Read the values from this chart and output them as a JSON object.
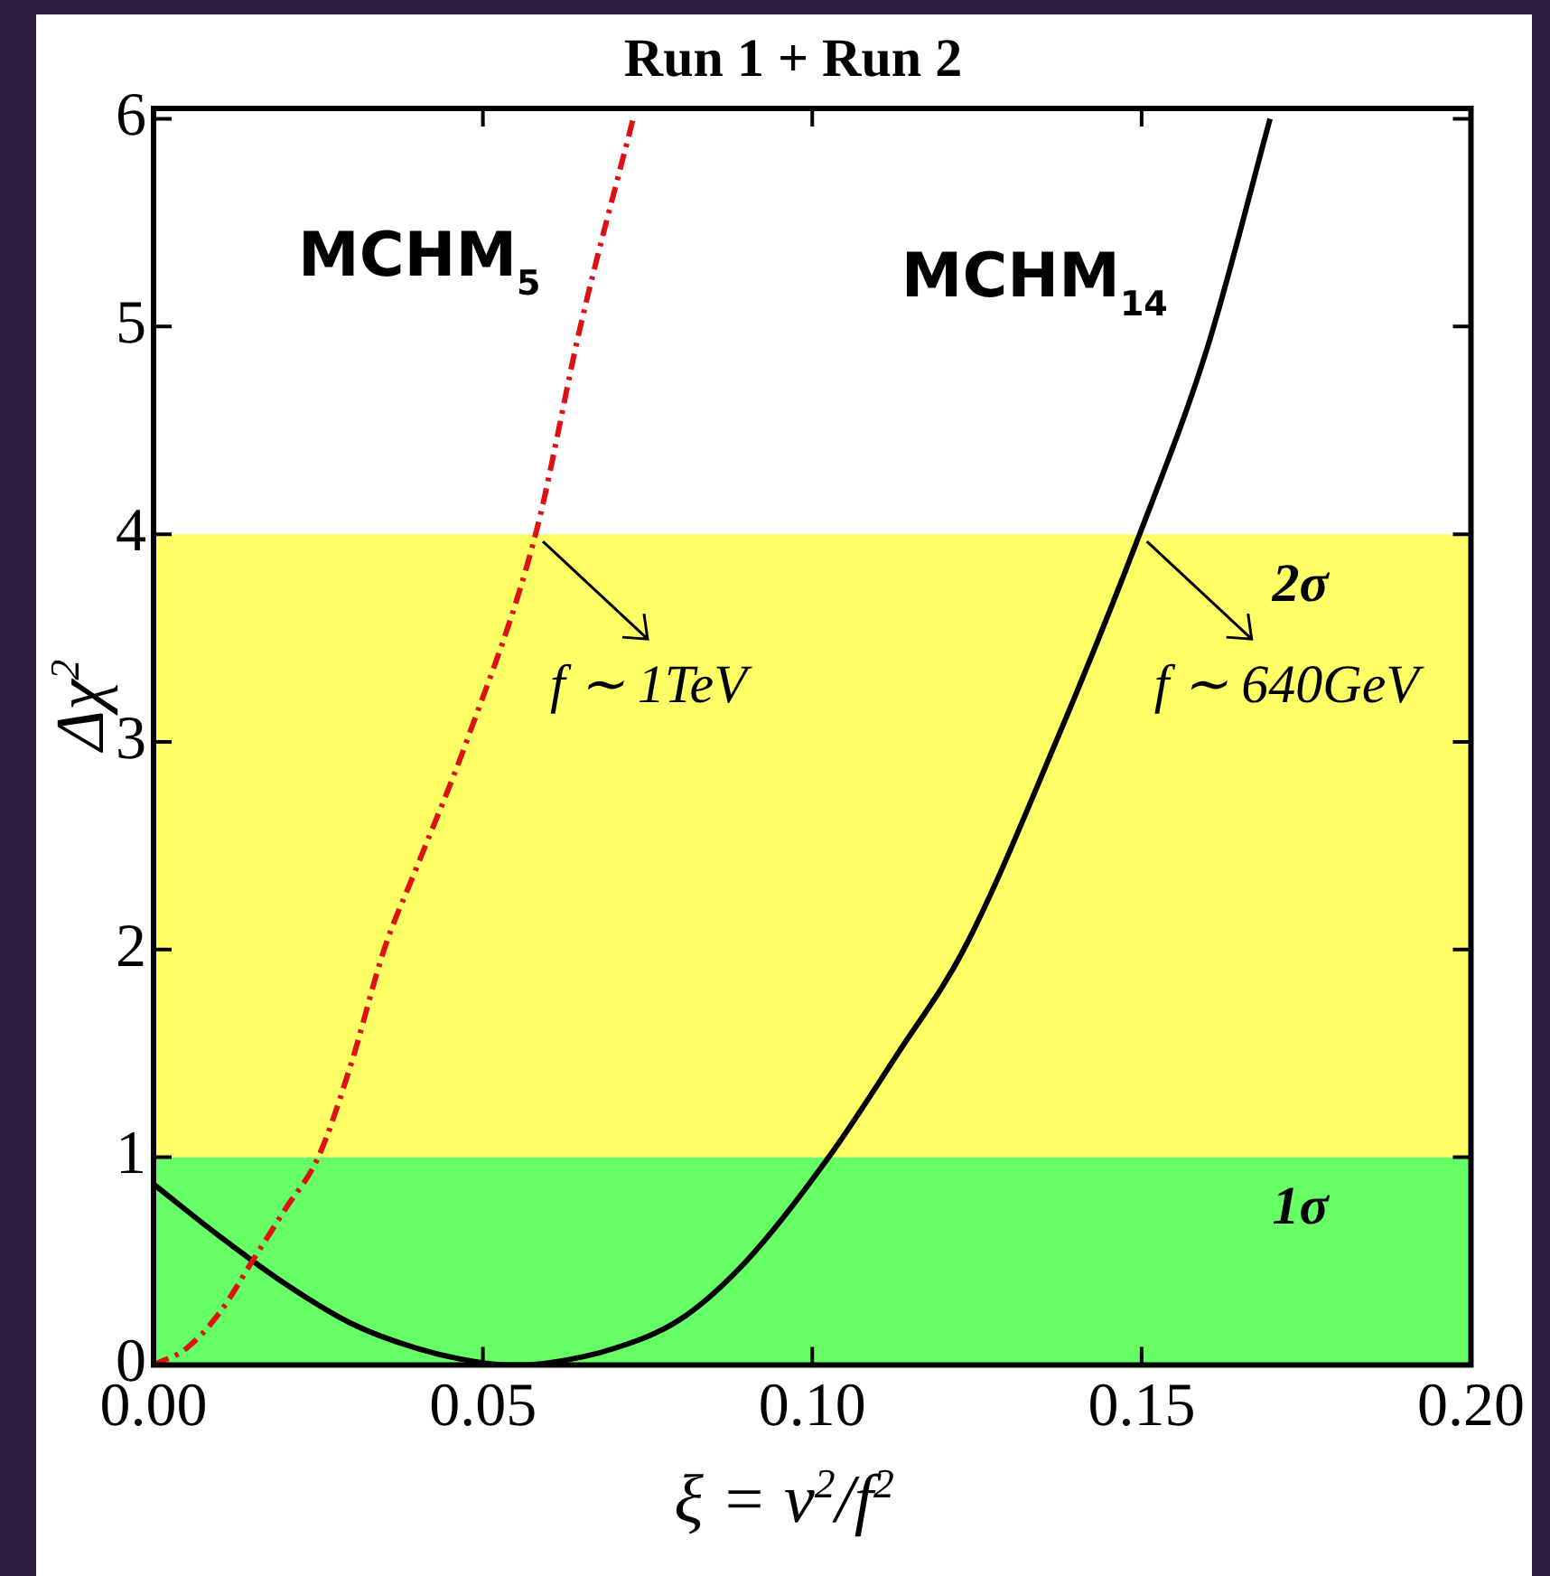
{
  "chart_data": {
    "type": "line",
    "title": "Run 1 + Run 2",
    "xlabel": "ξ = v$^{2}$/f$^{2}$",
    "ylabel": "Δχ$^{2}$",
    "xlim": [
      0,
      0.2
    ],
    "ylim": [
      0,
      6.05
    ],
    "xticks": [
      {
        "value": 0,
        "label": "0.00"
      },
      0.05,
      {
        "value": 0.1,
        "label": "0.10"
      },
      0.15,
      {
        "value": 0.2,
        "label": "0.20"
      }
    ],
    "yticks": [
      0,
      1,
      2,
      3,
      4,
      5,
      6
    ],
    "grid": false,
    "legend": false,
    "marker": "none",
    "series": [
      {
        "name": "MCHM$_{5}$",
        "color": "#dd1111",
        "line_style": "dashed",
        "x": [
          0,
          0.005,
          0.01,
          0.015,
          0.02,
          0.025,
          0.03,
          0.035,
          0.04,
          0.0475,
          0.058,
          0.0648,
          0.0728
        ],
        "values": [
          0,
          0.08,
          0.25,
          0.5,
          0.75,
          1.0,
          1.45,
          2.0,
          2.4,
          3.0,
          4.0,
          5.0,
          6.0
        ]
      },
      {
        "name": "MCHM$_{14}$",
        "color": "#000000",
        "line_style": "solid",
        "x": [
          0,
          0.01,
          0.02,
          0.03,
          0.04,
          0.05,
          0.055,
          0.06,
          0.07,
          0.08,
          0.09,
          0.1025,
          0.113,
          0.123,
          0.137,
          0.1497,
          0.16,
          0.1695
        ],
        "values": [
          0.87,
          0.62,
          0.39,
          0.2,
          0.08,
          0.01,
          0,
          0.01,
          0.08,
          0.22,
          0.5,
          1.0,
          1.5,
          2.0,
          3.0,
          4.0,
          4.9,
          6.0
        ]
      }
    ],
    "bands": [
      {
        "axis": "y",
        "from": 0,
        "to": 1,
        "label": "1σ",
        "color": "#66ff66"
      },
      {
        "axis": "y",
        "from": 1,
        "to": 4,
        "label": "2σ",
        "color": "#ffff66"
      }
    ],
    "annotations": [
      {
        "text": "f ∼ 1TeV",
        "x": 0.058,
        "y": 4
      },
      {
        "text": "f ∼ 640GeV",
        "x": 0.1497,
        "y": 4
      }
    ]
  }
}
